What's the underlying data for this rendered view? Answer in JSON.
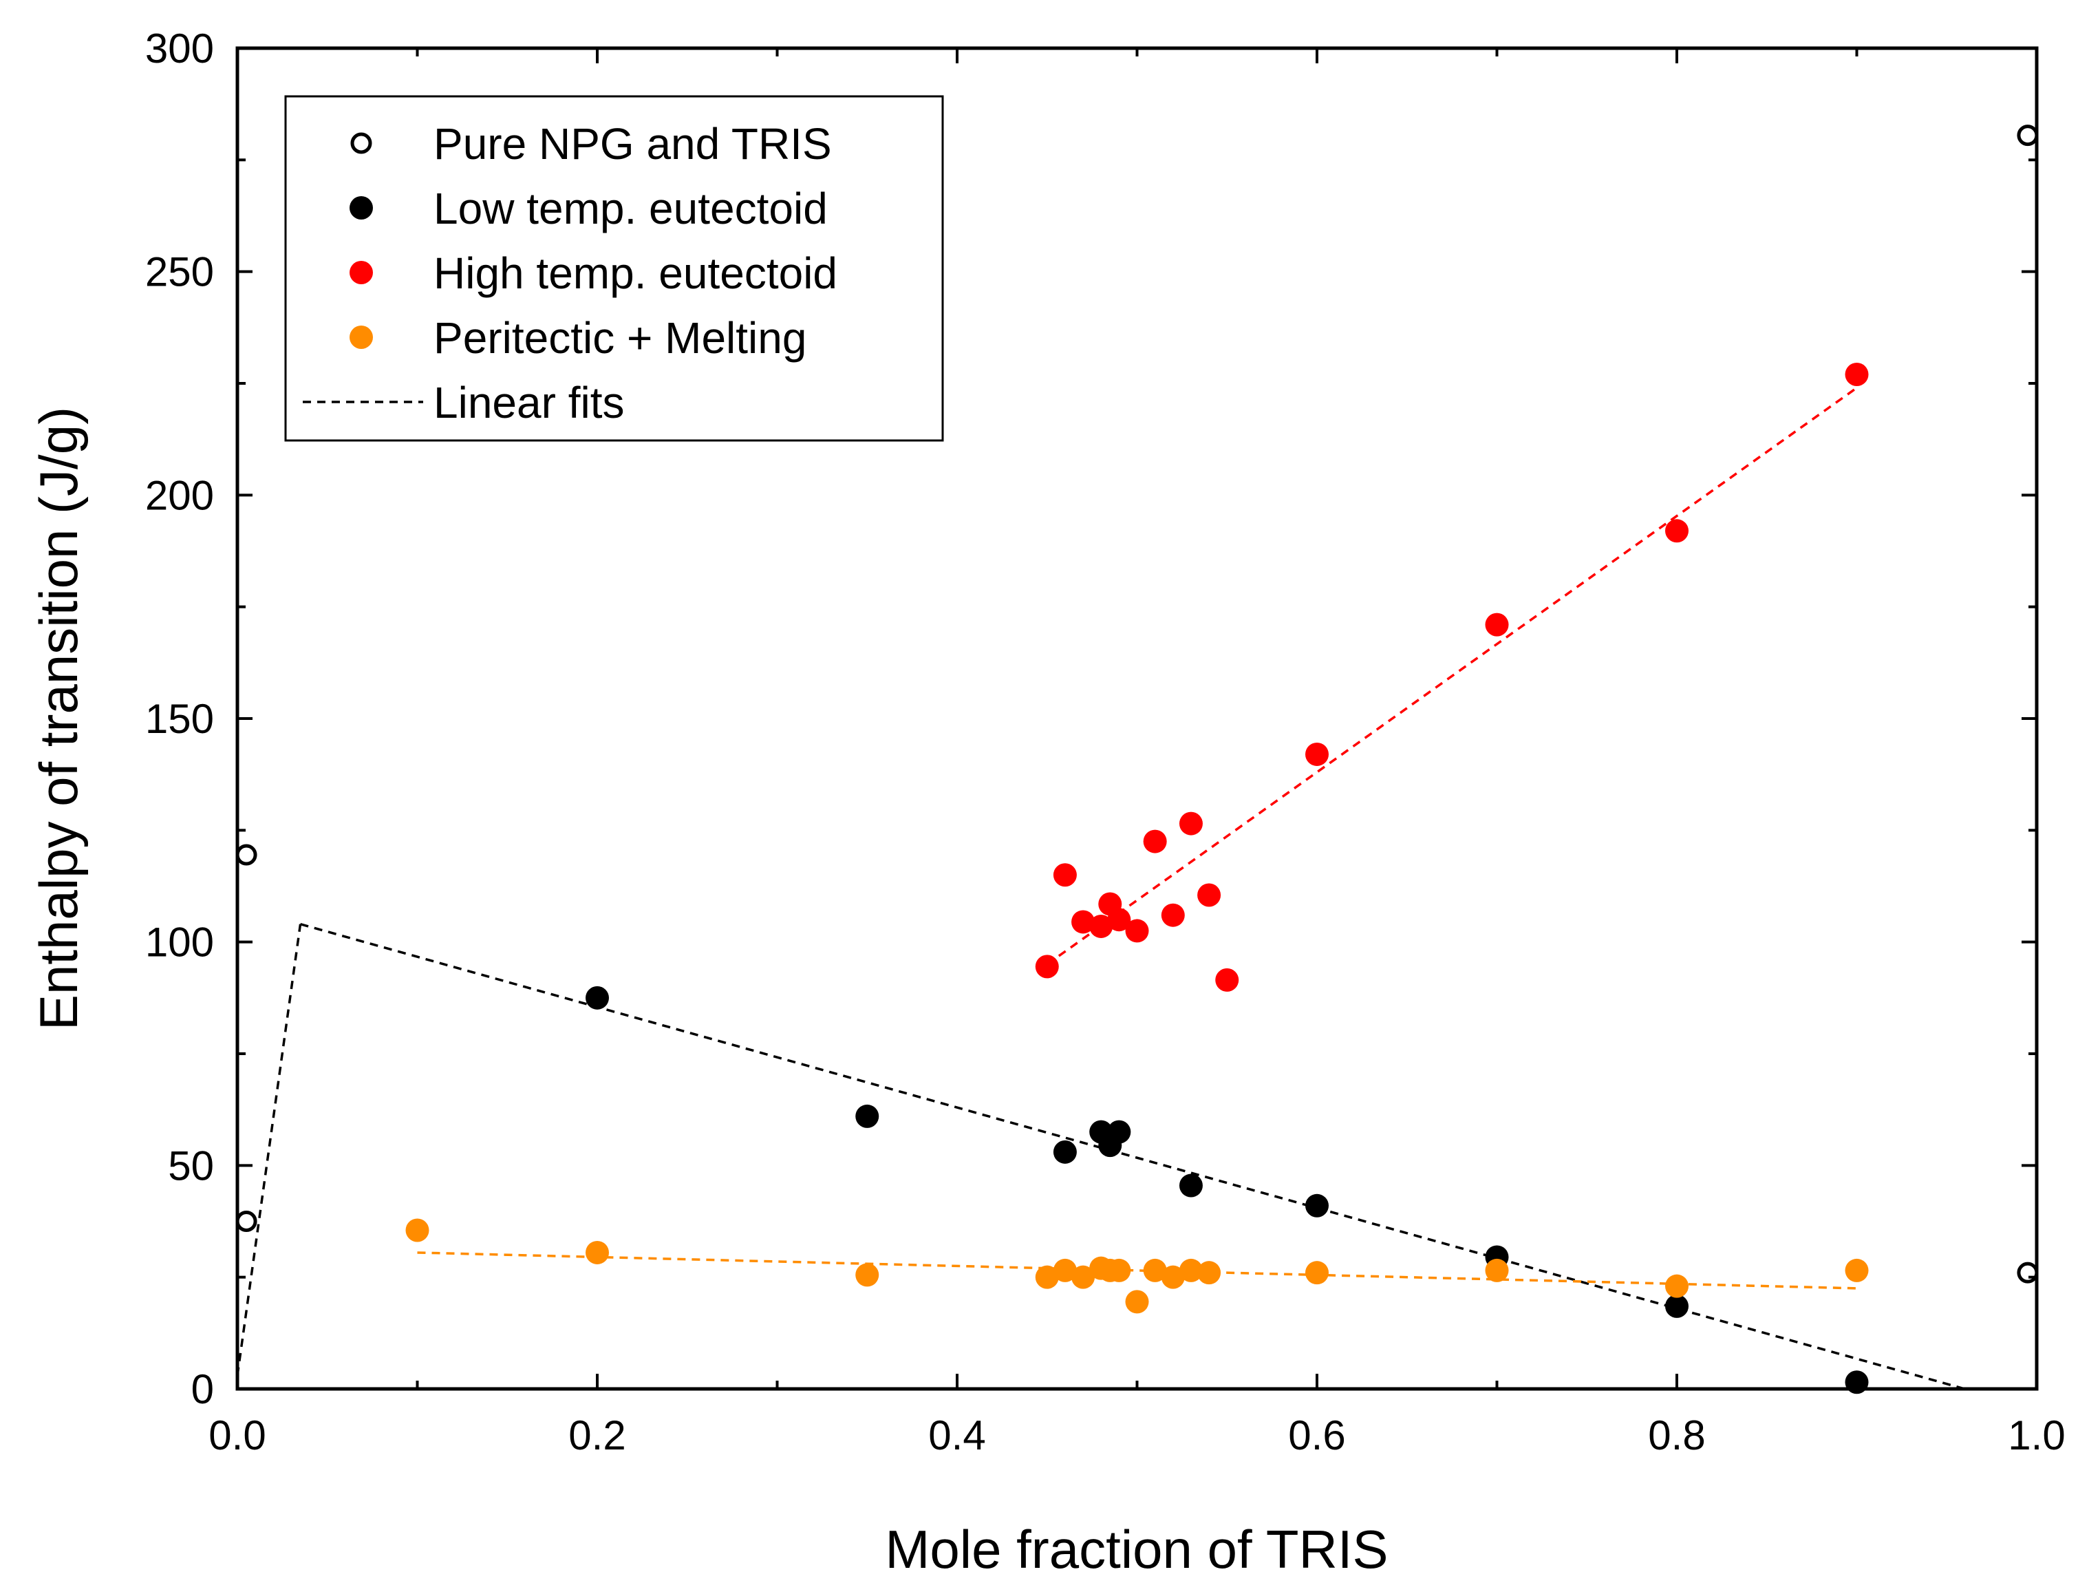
{
  "chart_data": {
    "type": "scatter",
    "title": "",
    "xlabel": "Mole fraction of TRIS",
    "ylabel": "Enthalpy of transition (J/g)",
    "xlim": [
      0.0,
      1.0
    ],
    "ylim": [
      0,
      300
    ],
    "x_ticks": [
      "0.0",
      "0.2",
      "0.4",
      "0.6",
      "0.8",
      "1.0"
    ],
    "x_tick_values": [
      0,
      0.2,
      0.4,
      0.6,
      0.8,
      1.0
    ],
    "y_ticks": [
      "0",
      "50",
      "100",
      "150",
      "200",
      "250",
      "300"
    ],
    "y_tick_values": [
      0,
      50,
      100,
      150,
      200,
      250,
      300
    ],
    "grid": false,
    "legend_position": "top-left",
    "series": [
      {
        "name": "Pure NPG and TRIS",
        "marker": "open-circle",
        "color": "#000000",
        "points": [
          [
            0.005,
            119.5
          ],
          [
            0.005,
            37.5
          ],
          [
            0.995,
            280.5
          ],
          [
            0.995,
            26
          ]
        ]
      },
      {
        "name": "Low temp. eutectoid",
        "marker": "filled-circle",
        "color": "#000000",
        "points": [
          [
            0.2,
            87.5
          ],
          [
            0.35,
            61
          ],
          [
            0.46,
            53
          ],
          [
            0.48,
            57.5
          ],
          [
            0.485,
            54.5
          ],
          [
            0.49,
            57.5
          ],
          [
            0.53,
            45.5
          ],
          [
            0.6,
            41
          ],
          [
            0.7,
            29.5
          ],
          [
            0.8,
            18.5
          ],
          [
            0.9,
            1.5
          ]
        ]
      },
      {
        "name": "High temp. eutectoid",
        "marker": "filled-circle",
        "color": "#ff0000",
        "points": [
          [
            0.45,
            94.5
          ],
          [
            0.46,
            115
          ],
          [
            0.47,
            104.5
          ],
          [
            0.48,
            103.5
          ],
          [
            0.485,
            108.5
          ],
          [
            0.49,
            105
          ],
          [
            0.5,
            102.5
          ],
          [
            0.51,
            122.5
          ],
          [
            0.52,
            106
          ],
          [
            0.53,
            126.5
          ],
          [
            0.54,
            110.5
          ],
          [
            0.55,
            91.5
          ],
          [
            0.6,
            142
          ],
          [
            0.7,
            171
          ],
          [
            0.8,
            192
          ],
          [
            0.9,
            227
          ]
        ]
      },
      {
        "name": "Peritectic + Melting",
        "marker": "filled-circle",
        "color": "#ff8c00",
        "points": [
          [
            0.1,
            35.5
          ],
          [
            0.2,
            30.5
          ],
          [
            0.35,
            25.5
          ],
          [
            0.45,
            25
          ],
          [
            0.46,
            26.5
          ],
          [
            0.47,
            25
          ],
          [
            0.48,
            27
          ],
          [
            0.485,
            26.5
          ],
          [
            0.49,
            26.5
          ],
          [
            0.5,
            19.5
          ],
          [
            0.51,
            26.5
          ],
          [
            0.52,
            25
          ],
          [
            0.53,
            26.5
          ],
          [
            0.54,
            26
          ],
          [
            0.6,
            26
          ],
          [
            0.7,
            26.5
          ],
          [
            0.8,
            23
          ],
          [
            0.9,
            26.5
          ]
        ]
      }
    ],
    "fits": [
      {
        "name": "Linear fits",
        "color": "#000000",
        "segments": [
          [
            [
              0.0,
              3
            ],
            [
              0.035,
              104
            ]
          ],
          [
            [
              0.035,
              104
            ],
            [
              0.96,
              0
            ]
          ]
        ]
      },
      {
        "color": "#ff0000",
        "segments": [
          [
            [
              0.45,
              95
            ],
            [
              0.9,
              224
            ]
          ]
        ]
      },
      {
        "color": "#ff8c00",
        "segments": [
          [
            [
              0.1,
              30.5
            ],
            [
              0.9,
              22.5
            ]
          ]
        ]
      }
    ]
  }
}
